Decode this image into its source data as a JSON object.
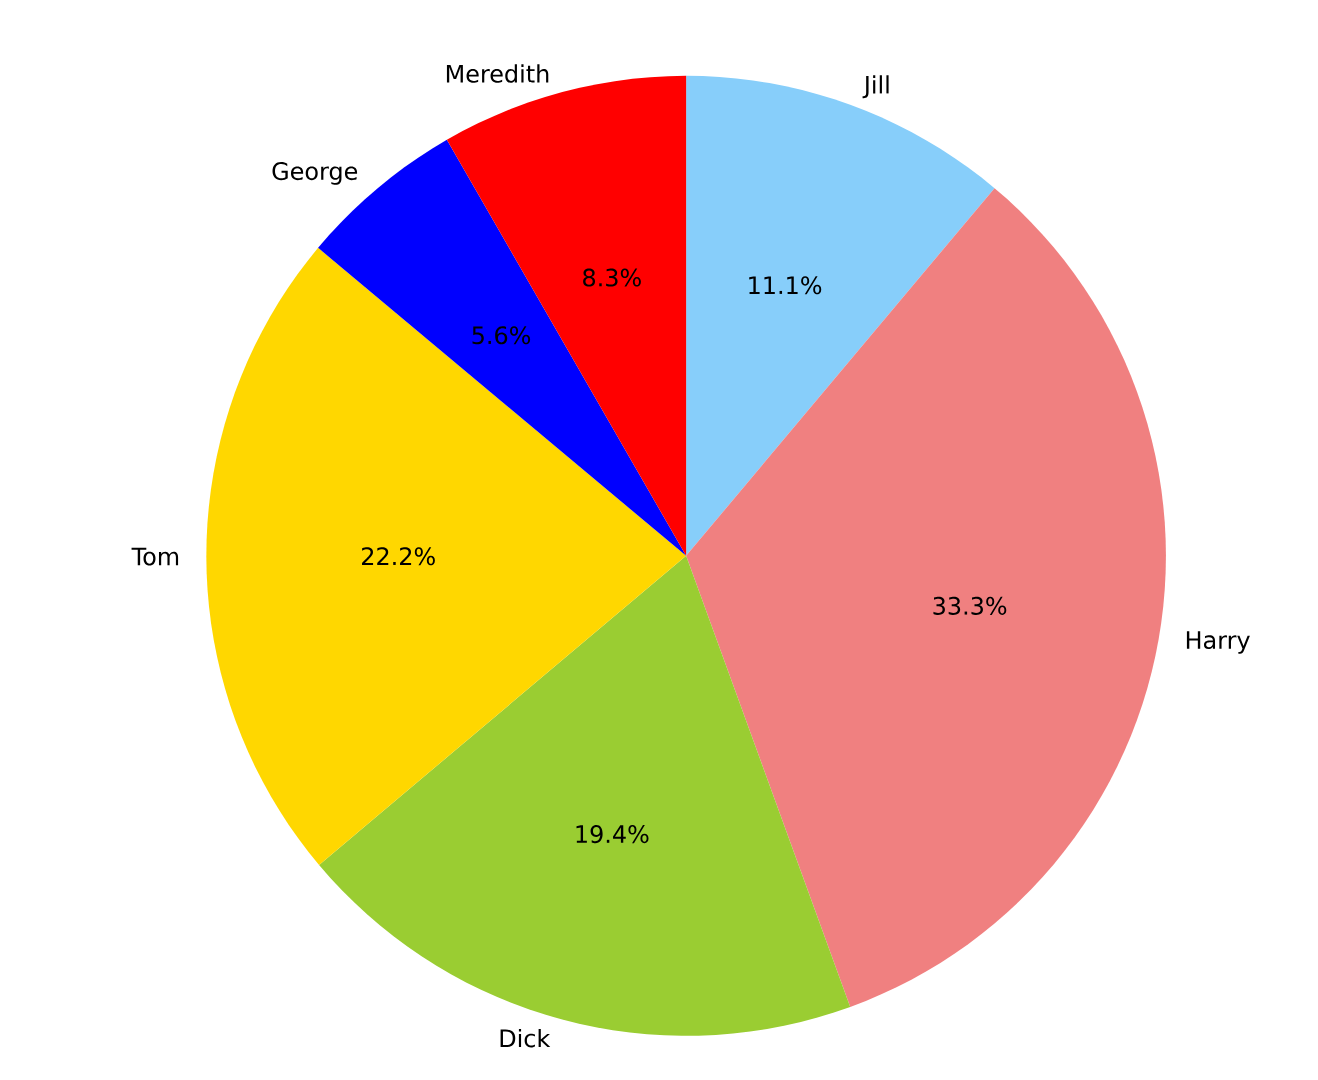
{
  "chart_data": {
    "type": "pie",
    "categories": [
      "Jill",
      "Harry",
      "Dick",
      "Tom",
      "George",
      "Meredith"
    ],
    "values": [
      11.1,
      33.3,
      19.4,
      22.2,
      5.6,
      8.3
    ],
    "value_labels": [
      "11.1%",
      "33.3%",
      "19.4%",
      "22.2%",
      "5.6%",
      "8.3%"
    ],
    "colors": [
      "#87cefa",
      "#f08080",
      "#9acd32",
      "#ffd700",
      "#0000ff",
      "#ff0000"
    ]
  }
}
